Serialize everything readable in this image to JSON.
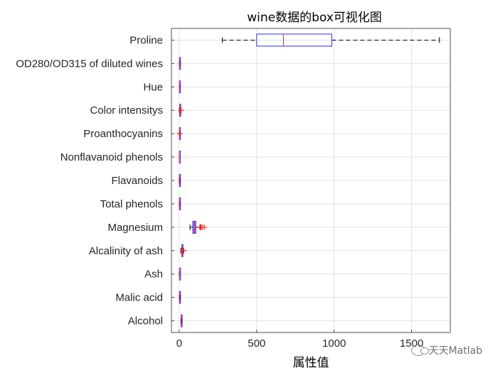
{
  "chart_data": {
    "type": "boxplot",
    "orientation": "horizontal",
    "title": "wine数据的box可视化图",
    "xlabel": "属性值",
    "ylabel": "",
    "xlim": [
      -50,
      1750
    ],
    "xticks": [
      0,
      500,
      1000,
      1500
    ],
    "grid": true,
    "colors": {
      "box": "#2b2bff",
      "median": "#ff2020",
      "whisker": "#000000",
      "outlier": "#ff2020",
      "filled": "#b07ad6"
    },
    "categories": [
      "Proline",
      "OD280/OD315 of diluted wines",
      "Hue",
      "Color intensitys",
      "Proanthocyanins",
      "Nonflavanoid phenols",
      "Flavanoids",
      "Total phenols",
      "Magnesium",
      "Alcalinity of ash",
      "Ash",
      "Malic acid",
      "Alcohol"
    ],
    "boxes": [
      {
        "name": "Proline",
        "min": 278,
        "q1": 500,
        "median": 673,
        "q3": 985,
        "max": 1680,
        "outliers": []
      },
      {
        "name": "OD280/OD315 of diluted wines",
        "min": 1.27,
        "q1": 1.93,
        "median": 2.78,
        "q3": 3.17,
        "max": 4.0,
        "outliers": []
      },
      {
        "name": "Hue",
        "min": 0.48,
        "q1": 0.78,
        "median": 0.97,
        "q3": 1.12,
        "max": 1.71,
        "outliers": []
      },
      {
        "name": "Color intensitys",
        "min": 1.28,
        "q1": 3.2,
        "median": 4.69,
        "q3": 6.2,
        "max": 10.8,
        "outliers": [
          11.75,
          13.0
        ]
      },
      {
        "name": "Proanthocyanins",
        "min": 0.41,
        "q1": 1.25,
        "median": 1.56,
        "q3": 1.95,
        "max": 2.96,
        "outliers": [
          3.28,
          3.58
        ]
      },
      {
        "name": "Nonflavanoid phenols",
        "min": 0.13,
        "q1": 0.27,
        "median": 0.34,
        "q3": 0.44,
        "max": 0.66,
        "outliers": []
      },
      {
        "name": "Flavanoids",
        "min": 0.34,
        "q1": 1.2,
        "median": 2.13,
        "q3": 2.88,
        "max": 5.08,
        "outliers": []
      },
      {
        "name": "Total phenols",
        "min": 0.98,
        "q1": 1.74,
        "median": 2.36,
        "q3": 2.8,
        "max": 3.88,
        "outliers": []
      },
      {
        "name": "Magnesium",
        "min": 70,
        "q1": 88,
        "median": 98,
        "q3": 107,
        "max": 134,
        "outliers": [
          139,
          142,
          151,
          162
        ]
      },
      {
        "name": "Alcalinity of ash",
        "min": 10.6,
        "q1": 17.2,
        "median": 19.5,
        "q3": 21.5,
        "max": 27.0,
        "outliers": [
          28.5,
          30.0
        ]
      },
      {
        "name": "Ash",
        "min": 1.36,
        "q1": 2.21,
        "median": 2.36,
        "q3": 2.56,
        "max": 3.23,
        "outliers": []
      },
      {
        "name": "Malic acid",
        "min": 0.74,
        "q1": 1.6,
        "median": 1.87,
        "q3": 3.08,
        "max": 5.8,
        "outliers": []
      },
      {
        "name": "Alcohol",
        "min": 11.03,
        "q1": 12.36,
        "median": 13.05,
        "q3": 13.68,
        "max": 14.83,
        "outliers": []
      }
    ]
  },
  "watermark": {
    "text": "天天Matlab"
  }
}
